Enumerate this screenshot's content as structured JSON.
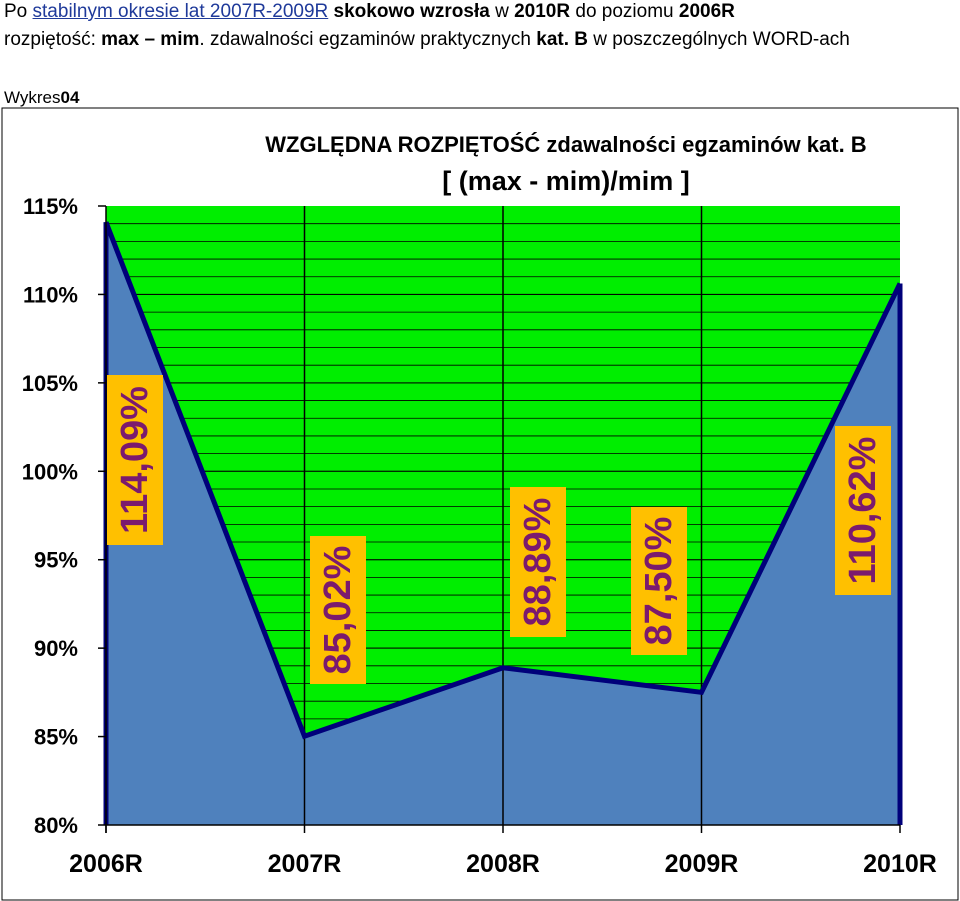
{
  "header": {
    "line1": {
      "prefix": "Po ",
      "link": "stabilnym okresie lat 2007R-2009R",
      "mid": " ",
      "bold1": "skokowo wzrosła",
      "mid2": " w ",
      "bold2": "2010R",
      "mid3": " do poziomu ",
      "bold3": "2006R"
    },
    "line2": {
      "prefix": "rozpiętość: ",
      "bold1": "max – mim",
      "mid": ". zdawalności egzaminów praktycznych  ",
      "bold2": "kat. B",
      "suffix": " w poszczególnych WORD-ach"
    }
  },
  "chart_label": {
    "prefix": "Wykres",
    "number": "04"
  },
  "chart_data": {
    "type": "area",
    "title": "WZGLĘDNA ROZPIĘTOŚĆ  zdawalności egzaminów kat. B",
    "subtitle": "[ (max - mim)/mim ]",
    "categories": [
      "2006R",
      "2007R",
      "2008R",
      "2009R",
      "2010R"
    ],
    "values": [
      114.09,
      85.02,
      88.89,
      87.5,
      110.62
    ],
    "data_labels": [
      "114,09%",
      "85,02%",
      "88,89%",
      "87,50%",
      "110,62%"
    ],
    "ylim": [
      80,
      115
    ],
    "yticks": [
      80,
      85,
      90,
      95,
      100,
      105,
      110,
      115
    ],
    "ytick_labels": [
      "80%",
      "85%",
      "90%",
      "95%",
      "100%",
      "105%",
      "110%",
      "115%"
    ],
    "colors": {
      "area": "#4f81bd",
      "line": "#00007a",
      "plot_background": "#00ee00",
      "label_box": "#ffc000",
      "label_text": "#7b1a6e"
    },
    "grid": true,
    "legend": "none"
  }
}
